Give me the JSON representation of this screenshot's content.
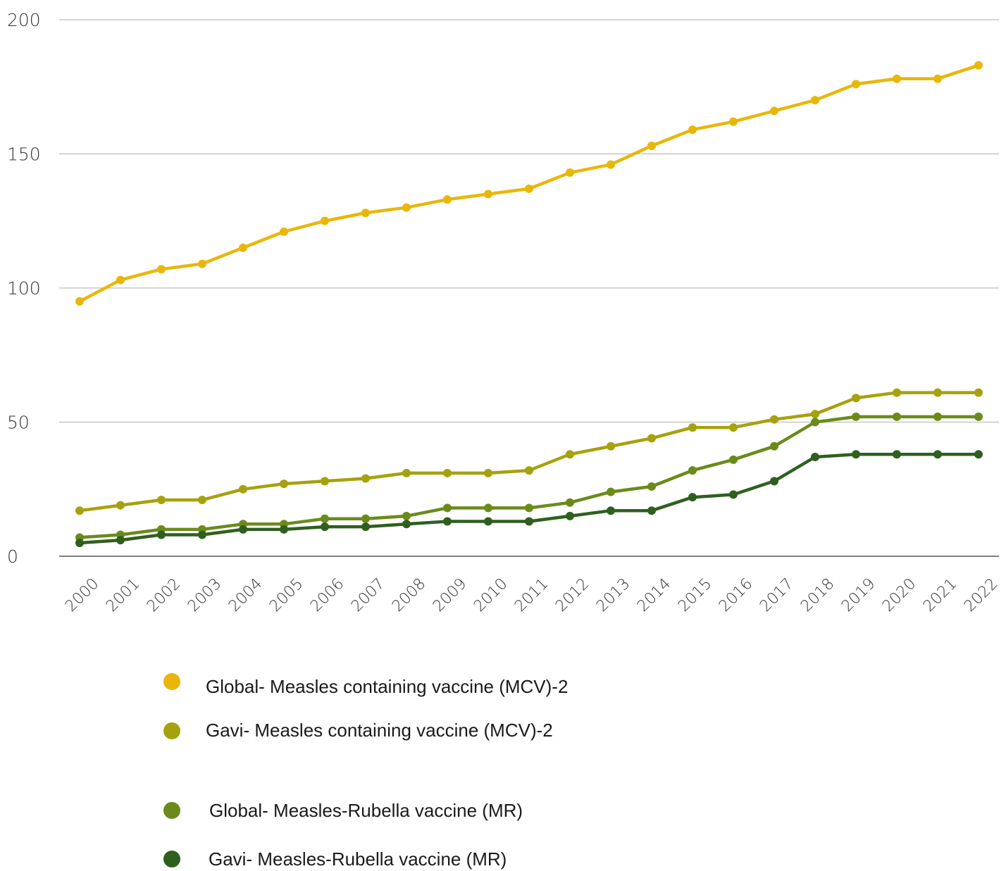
{
  "chart_data": {
    "type": "line",
    "x": [
      2000,
      2001,
      2002,
      2003,
      2004,
      2005,
      2006,
      2007,
      2008,
      2009,
      2010,
      2011,
      2012,
      2013,
      2014,
      2015,
      2016,
      2017,
      2018,
      2019,
      2020,
      2021,
      2022
    ],
    "x_tick_labels": [
      "2000",
      "2001",
      "2002",
      "2003",
      "2004",
      "2005",
      "2006",
      "2007",
      "2008",
      "2009",
      "2010",
      "2011",
      "2012",
      "2013",
      "2014",
      "2015",
      "2016",
      "2017",
      "2018",
      "2019",
      "2020",
      "2021",
      "2022"
    ],
    "ylim": [
      0,
      200
    ],
    "y_ticks": [
      0,
      50,
      100,
      150,
      200
    ],
    "y_tick_labels": [
      "0",
      "50",
      "100",
      "150",
      "200"
    ],
    "grid": "horizontal",
    "legend_position": "bottom",
    "series": [
      {
        "name": "Global- Measles containing vaccine (MCV)-2",
        "color": "#E8B70A",
        "values": [
          95,
          103,
          107,
          109,
          115,
          121,
          125,
          128,
          130,
          133,
          135,
          137,
          143,
          146,
          153,
          159,
          162,
          166,
          170,
          176,
          178,
          178,
          183
        ]
      },
      {
        "name": "Gavi- Measles containing vaccine (MCV)-2",
        "color": "#A5A20E",
        "values": [
          17,
          19,
          21,
          21,
          25,
          27,
          28,
          29,
          31,
          31,
          31,
          32,
          38,
          41,
          44,
          48,
          48,
          51,
          53,
          59,
          61,
          61,
          61
        ]
      },
      {
        "name": "Global- Measles-Rubella vaccine (MR)",
        "color": "#6A8B1A",
        "values": [
          7,
          8,
          10,
          10,
          12,
          12,
          14,
          14,
          15,
          18,
          18,
          18,
          20,
          24,
          26,
          32,
          36,
          41,
          50,
          52,
          52,
          52,
          52
        ]
      },
      {
        "name": "Gavi- Measles-Rubella vaccine (MR)",
        "color": "#2F5F1F",
        "values": [
          5,
          6,
          8,
          8,
          10,
          10,
          11,
          11,
          12,
          13,
          13,
          13,
          15,
          17,
          17,
          22,
          23,
          28,
          37,
          38,
          38,
          38,
          38
        ]
      }
    ]
  }
}
